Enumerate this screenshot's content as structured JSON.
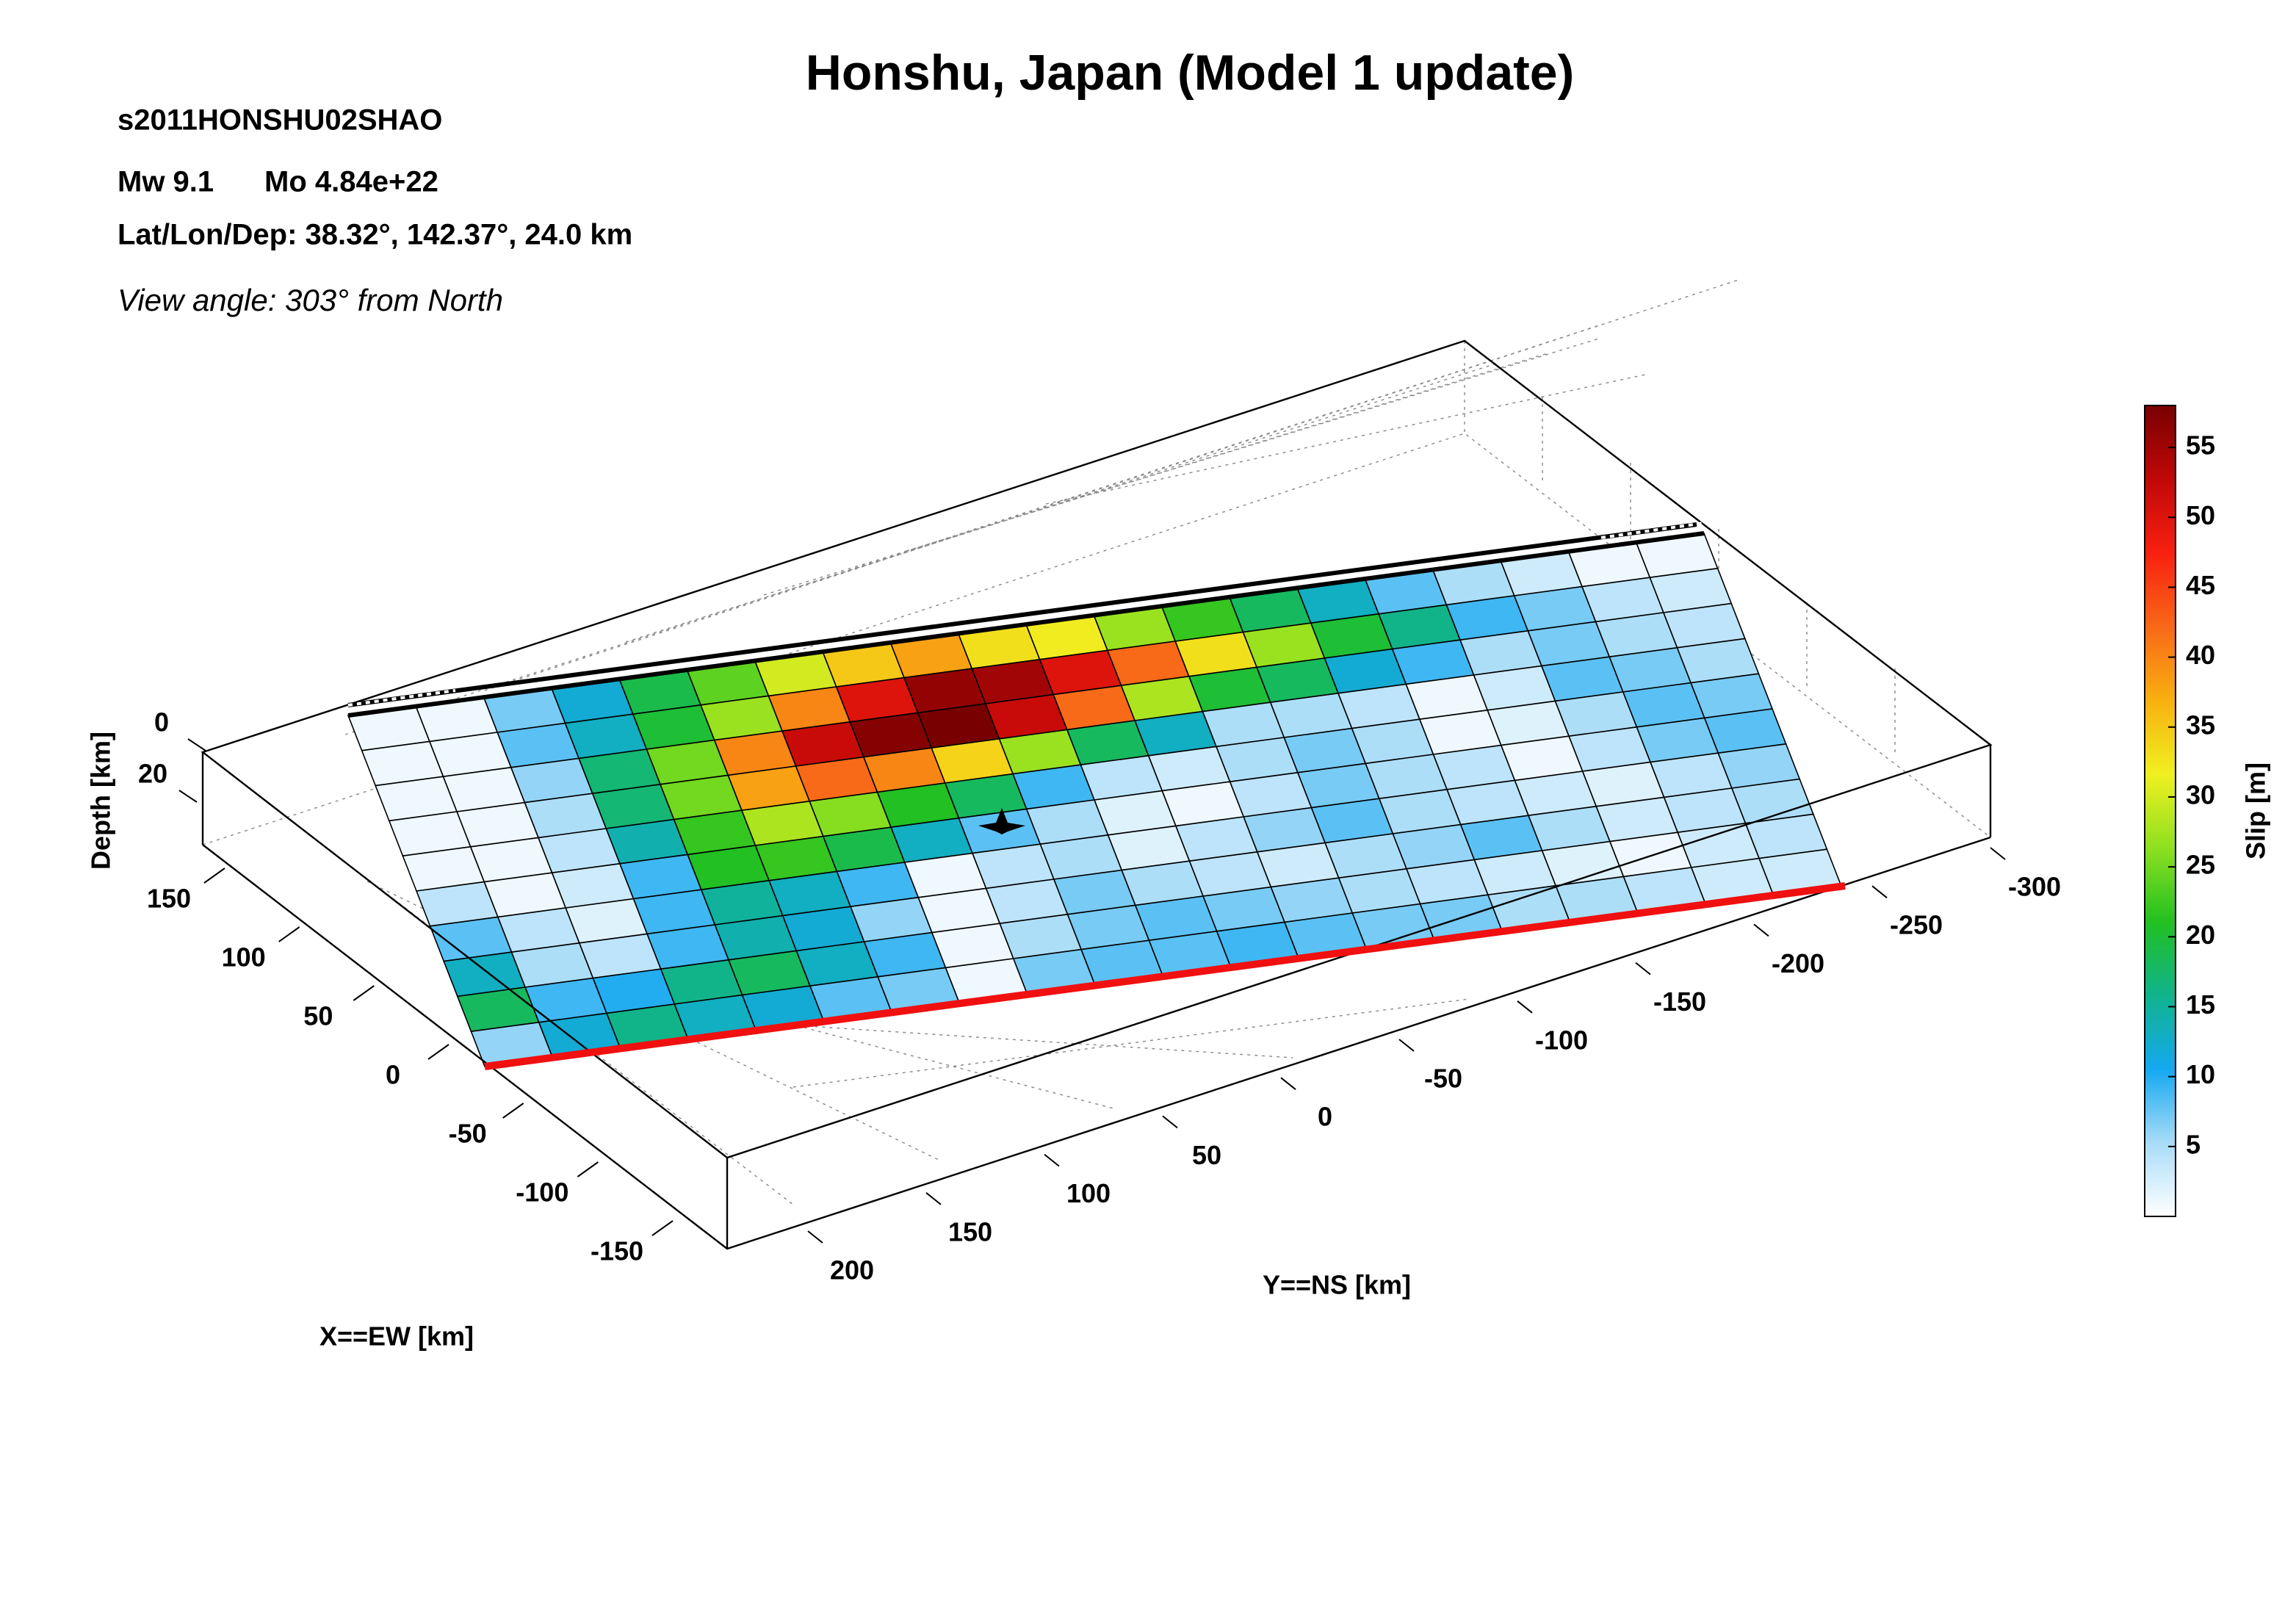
{
  "chart_data": {
    "type": "heatmap",
    "title": "Honshu, Japan (Model 1 update)",
    "annotations": [
      "s2011HONSHU02SHAO",
      "Mw 9.1",
      "Mo 4.84e+22",
      "Lat/Lon/Dep: 38.32°, 142.37°, 24.0 km",
      "View angle: 303° from North"
    ],
    "xlabel": "X==EW [km]",
    "ylabel": "Y==NS [km]",
    "zlabel": "Depth [km]",
    "xticks": [
      150,
      100,
      50,
      0,
      -50,
      -100,
      -150
    ],
    "yticks": [
      200,
      150,
      100,
      50,
      0,
      -50,
      -100,
      -150,
      -200,
      -250,
      -300
    ],
    "zticks": [
      0,
      20
    ],
    "colorbar_label": "Slip [m]",
    "clim": [
      0,
      58
    ],
    "colorbar_ticks": [
      5,
      10,
      15,
      20,
      25,
      30,
      35,
      40,
      45,
      50,
      55
    ],
    "colors": [
      "#ffffff",
      "#a8dcf8",
      "#14a8f0",
      "#10b48c",
      "#22c020",
      "#8ee020",
      "#f0f020",
      "#f8b010",
      "#f86818",
      "#f82010",
      "#c00808",
      "#780000"
    ],
    "slip": [
      [
        1,
        1,
        7,
        12,
        19,
        24,
        30,
        35,
        38,
        33,
        32,
        27,
        22,
        18,
        13,
        8,
        5,
        3,
        1,
        1
      ],
      [
        1,
        1,
        8,
        13,
        20,
        27,
        40,
        50,
        56,
        55,
        50,
        42,
        33,
        27,
        20,
        16,
        9,
        7,
        4,
        3
      ],
      [
        1,
        1,
        6,
        17,
        25,
        40,
        52,
        57,
        58,
        52,
        42,
        28,
        20,
        18,
        12,
        9,
        5,
        7,
        5,
        4
      ],
      [
        1,
        1,
        5,
        17,
        25,
        38,
        42,
        40,
        34,
        27,
        18,
        13,
        5,
        5,
        4,
        1,
        3,
        8,
        7,
        5
      ],
      [
        1,
        1,
        4,
        14,
        22,
        28,
        26,
        21,
        18,
        9,
        4,
        3,
        5,
        7,
        5,
        1,
        2,
        5,
        8,
        7
      ],
      [
        4,
        1,
        3,
        9,
        21,
        22,
        19,
        13,
        8,
        5,
        2,
        1,
        4,
        7,
        5,
        4,
        1,
        4,
        7,
        8
      ],
      [
        8,
        4,
        2,
        9,
        15,
        13,
        9,
        1,
        4,
        5,
        2,
        4,
        6,
        8,
        5,
        4,
        3,
        2,
        4,
        6
      ],
      [
        13,
        5,
        4,
        9,
        14,
        12,
        6,
        1,
        4,
        7,
        5,
        4,
        3,
        5,
        6,
        8,
        5,
        3,
        4,
        5
      ],
      [
        18,
        9,
        10,
        16,
        18,
        13,
        9,
        1,
        5,
        7,
        8,
        7,
        6,
        5,
        4,
        3,
        2,
        1,
        3,
        4
      ],
      [
        6,
        12,
        16,
        13,
        12,
        8,
        7,
        1,
        7,
        8,
        8,
        9,
        8,
        7,
        7,
        5,
        5,
        4,
        3,
        3
      ]
    ]
  }
}
